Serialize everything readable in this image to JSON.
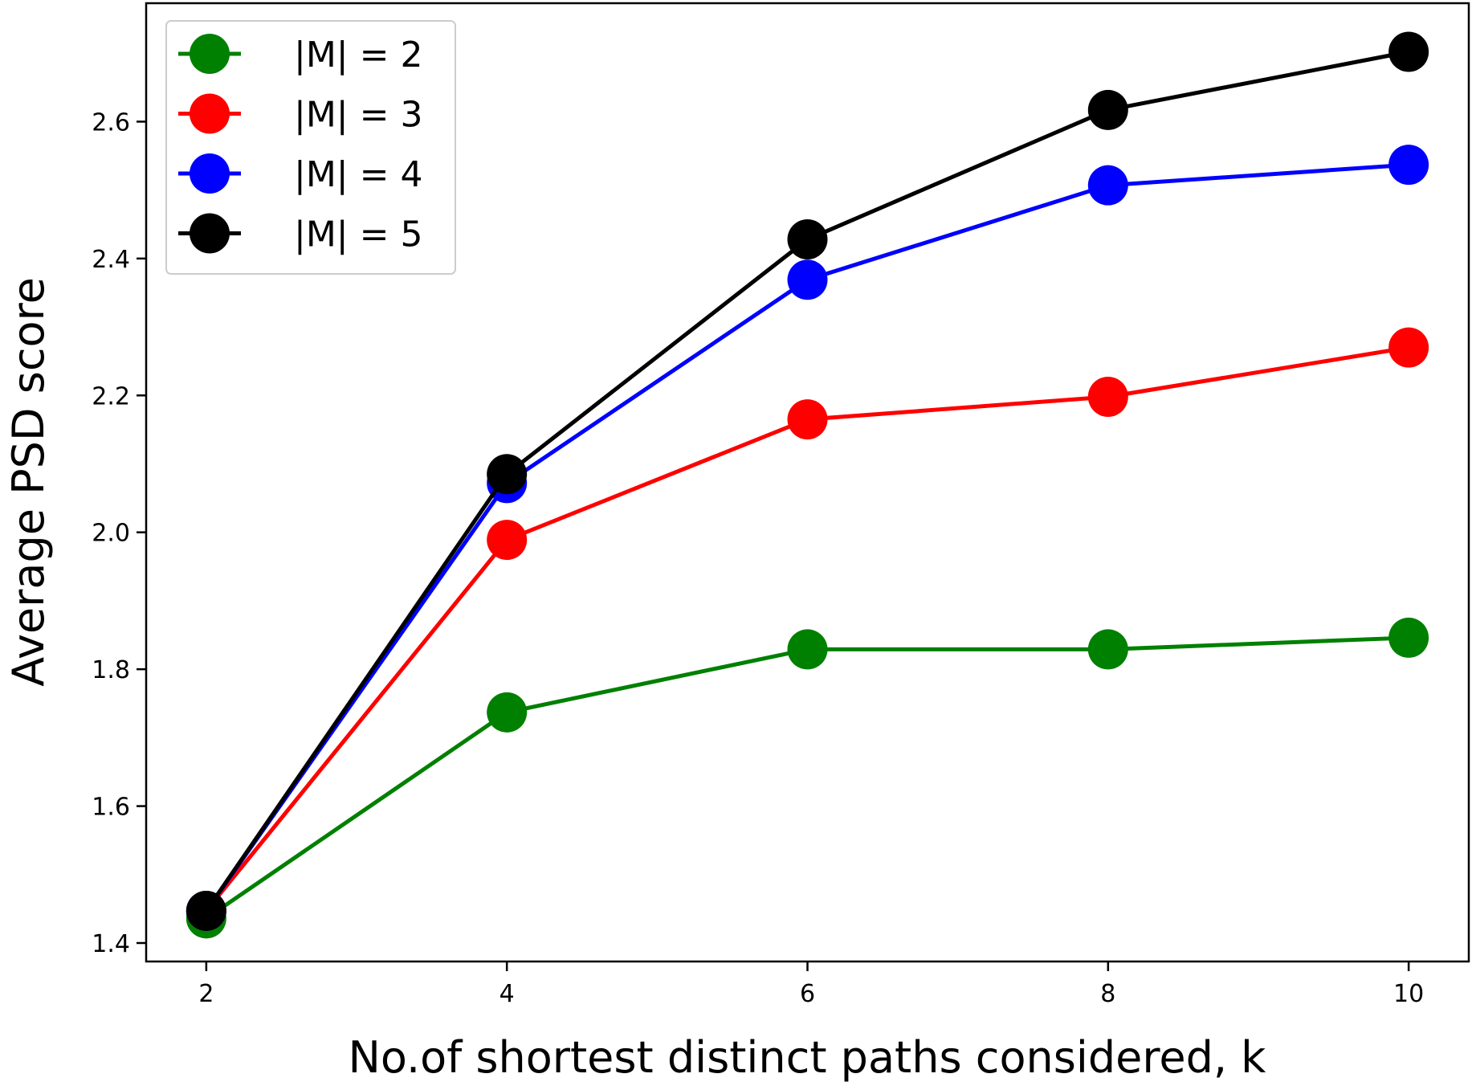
{
  "chart_data": {
    "type": "line",
    "title": "",
    "xlabel": "No.of shortest distinct paths considered, k",
    "ylabel": "Average PSD score",
    "x": [
      2,
      4,
      6,
      8,
      10
    ],
    "xlim": [
      1.6,
      10.4
    ],
    "ylim": [
      1.373,
      2.773
    ],
    "x_ticks": [
      2,
      4,
      6,
      8,
      10
    ],
    "x_tick_labels": [
      "2",
      "4",
      "6",
      "8",
      "10"
    ],
    "y_ticks": [
      1.4,
      1.6,
      1.8,
      2.0,
      2.2,
      2.4,
      2.6
    ],
    "y_tick_labels": [
      "1.4",
      "1.6",
      "1.8",
      "2.0",
      "2.2",
      "2.4",
      "2.6"
    ],
    "grid": false,
    "legend_position": "top-left",
    "series": [
      {
        "name": "|M| = 2",
        "color": "#008000",
        "values": [
          1.436,
          1.737,
          1.829,
          1.829,
          1.846
        ]
      },
      {
        "name": "|M| = 3",
        "color": "#ff0000",
        "values": [
          1.447,
          1.989,
          2.165,
          2.198,
          2.27
        ]
      },
      {
        "name": "|M| = 4",
        "color": "#0000ff",
        "values": [
          1.447,
          2.072,
          2.369,
          2.507,
          2.537
        ]
      },
      {
        "name": "|M| = 5",
        "color": "#000000",
        "values": [
          1.447,
          2.085,
          2.428,
          2.617,
          2.702
        ]
      }
    ]
  }
}
